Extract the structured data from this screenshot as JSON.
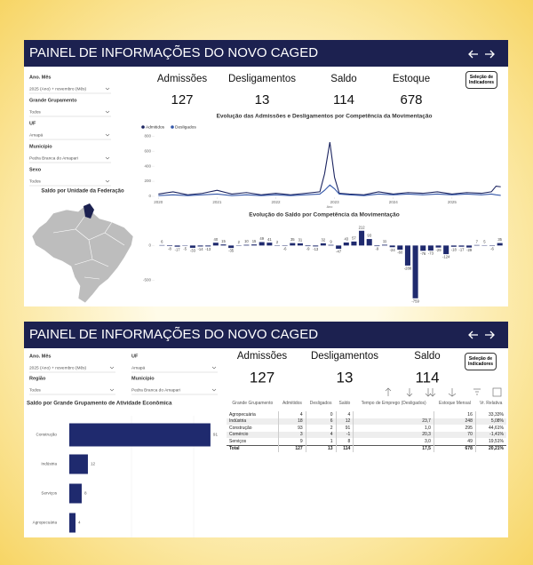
{
  "panels": [
    {
      "header": {
        "title": "PAINEL DE INFORMAÇÕES DO NOVO CAGED"
      },
      "filters": [
        {
          "label": "Ano. Mês",
          "value": "2025 (Ano) + novembro (Mês)"
        },
        {
          "label": "Grande Grupamento",
          "value": "Todos"
        },
        {
          "label": "UF",
          "value": "Amapá"
        },
        {
          "label": "Município",
          "value": "Pedra Branca do Amapari"
        },
        {
          "label": "Sexo",
          "value": "Todos"
        }
      ],
      "kpis": [
        {
          "label": "Admissões",
          "value": 127
        },
        {
          "label": "Desligamentos",
          "value": 13
        },
        {
          "label": "Saldo",
          "value": 114
        },
        {
          "label": "Estoque",
          "value": 678
        }
      ],
      "button": "Seleção de Indicadores",
      "map_title": "Saldo por Unidade da Federação"
    },
    {
      "header": {
        "title": "PAINEL DE INFORMAÇÕES DO NOVO CAGED"
      },
      "filters": [
        {
          "label": "Ano. Mês",
          "value": "2025 (Ano) + novembro (Mês)"
        },
        {
          "label": "Região",
          "value": "Todos"
        },
        {
          "label": "UF",
          "value": "Amapá"
        },
        {
          "label": "Município",
          "value": "Pedra Branca do Amapari"
        }
      ],
      "kpis": [
        {
          "label": "Admissões",
          "value": 127
        },
        {
          "label": "Desligamentos",
          "value": 13
        },
        {
          "label": "Saldo",
          "value": 114
        }
      ],
      "button": "Seleção de Indicadores",
      "table": {
        "columns": [
          "Grande Grupamento",
          "Admitidos",
          "Desligados",
          "Saldo",
          "Tempo de Emprego (Desligados)",
          "Estoque Mensal",
          "Vr. Relativa"
        ],
        "rows": [
          [
            "Agropecuária",
            4,
            0,
            4,
            "",
            16,
            "33,33%"
          ],
          [
            "Indústria",
            18,
            6,
            12,
            "23,7",
            248,
            "5,08%"
          ],
          [
            "Construção",
            93,
            2,
            91,
            "1,0",
            295,
            "44,61%"
          ],
          [
            "Comércio",
            3,
            4,
            -1,
            "20,3",
            70,
            "-1,41%"
          ],
          [
            "Serviços",
            9,
            1,
            8,
            "3,0",
            49,
            "19,51%"
          ],
          [
            "Total",
            127,
            13,
            114,
            "17,5",
            678,
            "20,21%"
          ]
        ]
      }
    }
  ],
  "chart_data": [
    {
      "type": "line",
      "title": "Evolução das Admissões e Desligamentos por Competência da Movimentação",
      "x_label": "Ano",
      "x": [
        2020.0,
        2020.25,
        2020.5,
        2020.75,
        2021.0,
        2021.25,
        2021.5,
        2021.75,
        2022.0,
        2022.25,
        2022.5,
        2022.75,
        2022.83,
        2022.92,
        2023.0,
        2023.08,
        2023.25,
        2023.5,
        2023.75,
        2024.0,
        2024.25,
        2024.5,
        2024.75,
        2025.0,
        2025.25,
        2025.5,
        2025.67,
        2025.75,
        2025.83
      ],
      "series": [
        {
          "name": "Admitidos",
          "color": "#1b2460",
          "values": [
            30,
            60,
            20,
            40,
            80,
            30,
            50,
            20,
            40,
            20,
            40,
            60,
            300,
            720,
            250,
            40,
            30,
            20,
            60,
            30,
            50,
            40,
            60,
            30,
            50,
            40,
            60,
            135,
            127
          ]
        },
        {
          "name": "Desligados",
          "color": "#3356a8",
          "values": [
            10,
            20,
            10,
            20,
            30,
            10,
            20,
            10,
            20,
            10,
            20,
            30,
            80,
            150,
            100,
            30,
            20,
            10,
            30,
            20,
            30,
            20,
            30,
            20,
            30,
            20,
            30,
            20,
            13
          ]
        }
      ],
      "xlim": [
        2019.95,
        2025.88
      ],
      "xticks": [
        2020,
        2021,
        2022,
        2023,
        2024,
        2025
      ],
      "ylim": [
        0,
        850
      ],
      "yticks": [
        0,
        200,
        400,
        600,
        800
      ]
    },
    {
      "type": "bar",
      "title": "Evolução do Saldo por Competência da Movimentação",
      "color": "#1f2a6e",
      "values": [
        6,
        -8,
        -17,
        -5,
        -33,
        -14,
        -13,
        40,
        15,
        -35,
        2,
        10,
        15,
        49,
        41,
        2,
        -6,
        35,
        31,
        -9,
        -13,
        32,
        9,
        -47,
        43,
        57,
        212,
        93,
        -9,
        11,
        -24,
        -60,
        -288,
        -759,
        -76,
        -73,
        -29,
        -124,
        -18,
        -17,
        -29,
        7,
        5,
        -6,
        35
      ],
      "ylim": [
        -800,
        260
      ],
      "yticks": [
        0,
        -500
      ]
    },
    {
      "type": "hbar",
      "title": "Saldo por Grande Grupamento de Atividade Econômica",
      "color": "#1f2a6e",
      "categories": [
        "Construção",
        "Indústria",
        "Serviços",
        "Agropecuária"
      ],
      "values": [
        91,
        12,
        8,
        4
      ],
      "xlim": [
        0,
        98.5
      ]
    }
  ]
}
